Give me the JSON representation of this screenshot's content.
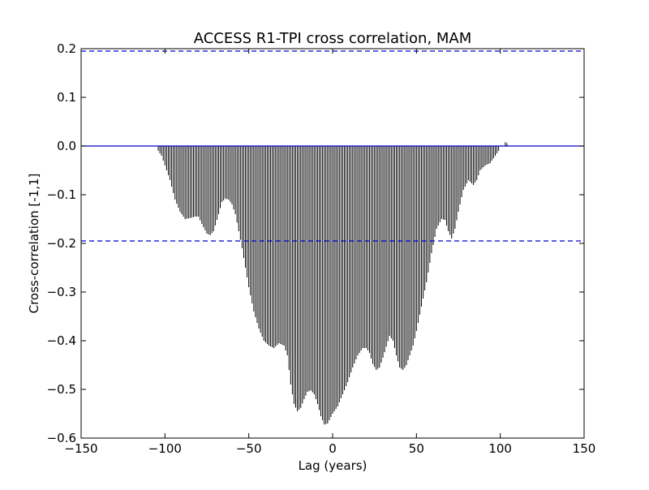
{
  "chart_data": {
    "type": "bar",
    "title": "ACCESS R1-TPI cross correlation, MAM",
    "xlabel": "Lag (years)",
    "ylabel": "Cross-correlation [-1,1]",
    "xlim": [
      -150,
      150
    ],
    "ylim": [
      -0.6,
      0.2
    ],
    "x_ticks": [
      -150,
      -100,
      -50,
      0,
      50,
      100,
      150
    ],
    "x_tick_labels": [
      "−150",
      "−100",
      "−50",
      "0",
      "50",
      "100",
      "150"
    ],
    "y_ticks": [
      0.2,
      0.1,
      0.0,
      -0.1,
      -0.2,
      -0.3,
      -0.4,
      -0.5,
      -0.6
    ],
    "y_tick_labels": [
      "0.2",
      "0.1",
      "0.0",
      "−0.1",
      "−0.2",
      "−0.3",
      "−0.4",
      "−0.5",
      "−0.6"
    ],
    "grid": false,
    "legend": "none",
    "bar_color": "#000000",
    "reference_lines": [
      {
        "value": 0.0,
        "style": "solid",
        "color": "#0000cc"
      },
      {
        "value": 0.195,
        "style": "dashed",
        "color": "#0000cc"
      },
      {
        "value": -0.195,
        "style": "dashed",
        "color": "#0000cc"
      }
    ],
    "profile": [
      [
        -105,
        0.0
      ],
      [
        -104,
        -0.01
      ],
      [
        -102,
        -0.02
      ],
      [
        -100,
        -0.04
      ],
      [
        -97,
        -0.07
      ],
      [
        -94,
        -0.11
      ],
      [
        -91,
        -0.135
      ],
      [
        -88,
        -0.15
      ],
      [
        -85,
        -0.148
      ],
      [
        -82,
        -0.145
      ],
      [
        -80,
        -0.145
      ],
      [
        -78,
        -0.16
      ],
      [
        -75,
        -0.18
      ],
      [
        -73,
        -0.183
      ],
      [
        -71,
        -0.175
      ],
      [
        -68,
        -0.14
      ],
      [
        -66,
        -0.115
      ],
      [
        -64,
        -0.108
      ],
      [
        -62,
        -0.11
      ],
      [
        -60,
        -0.12
      ],
      [
        -58,
        -0.14
      ],
      [
        -56,
        -0.175
      ],
      [
        -54,
        -0.21
      ],
      [
        -52,
        -0.25
      ],
      [
        -50,
        -0.29
      ],
      [
        -47,
        -0.34
      ],
      [
        -44,
        -0.375
      ],
      [
        -41,
        -0.4
      ],
      [
        -38,
        -0.41
      ],
      [
        -35,
        -0.415
      ],
      [
        -32,
        -0.405
      ],
      [
        -29,
        -0.41
      ],
      [
        -27,
        -0.43
      ],
      [
        -25,
        -0.49
      ],
      [
        -23,
        -0.53
      ],
      [
        -21,
        -0.545
      ],
      [
        -19,
        -0.538
      ],
      [
        -17,
        -0.52
      ],
      [
        -15,
        -0.505
      ],
      [
        -13,
        -0.502
      ],
      [
        -11,
        -0.51
      ],
      [
        -9,
        -0.53
      ],
      [
        -7,
        -0.555
      ],
      [
        -5,
        -0.572
      ],
      [
        -3,
        -0.57
      ],
      [
        0,
        -0.55
      ],
      [
        3,
        -0.535
      ],
      [
        6,
        -0.51
      ],
      [
        9,
        -0.485
      ],
      [
        12,
        -0.455
      ],
      [
        15,
        -0.43
      ],
      [
        18,
        -0.415
      ],
      [
        20,
        -0.415
      ],
      [
        22,
        -0.425
      ],
      [
        24,
        -0.448
      ],
      [
        26,
        -0.46
      ],
      [
        28,
        -0.455
      ],
      [
        30,
        -0.435
      ],
      [
        32,
        -0.412
      ],
      [
        34,
        -0.39
      ],
      [
        36,
        -0.4
      ],
      [
        38,
        -0.43
      ],
      [
        40,
        -0.455
      ],
      [
        42,
        -0.46
      ],
      [
        44,
        -0.45
      ],
      [
        46,
        -0.43
      ],
      [
        48,
        -0.41
      ],
      [
        50,
        -0.38
      ],
      [
        53,
        -0.33
      ],
      [
        56,
        -0.28
      ],
      [
        59,
        -0.22
      ],
      [
        62,
        -0.17
      ],
      [
        65,
        -0.15
      ],
      [
        67,
        -0.152
      ],
      [
        69,
        -0.175
      ],
      [
        71,
        -0.19
      ],
      [
        73,
        -0.17
      ],
      [
        75,
        -0.135
      ],
      [
        78,
        -0.09
      ],
      [
        81,
        -0.07
      ],
      [
        84,
        -0.08
      ],
      [
        86,
        -0.07
      ],
      [
        88,
        -0.05
      ],
      [
        91,
        -0.04
      ],
      [
        94,
        -0.035
      ],
      [
        97,
        -0.02
      ],
      [
        99,
        -0.01
      ],
      [
        100,
        0.0
      ],
      [
        102,
        0.0
      ],
      [
        103,
        0.008
      ],
      [
        104,
        0.006
      ],
      [
        105,
        0.0
      ]
    ]
  }
}
